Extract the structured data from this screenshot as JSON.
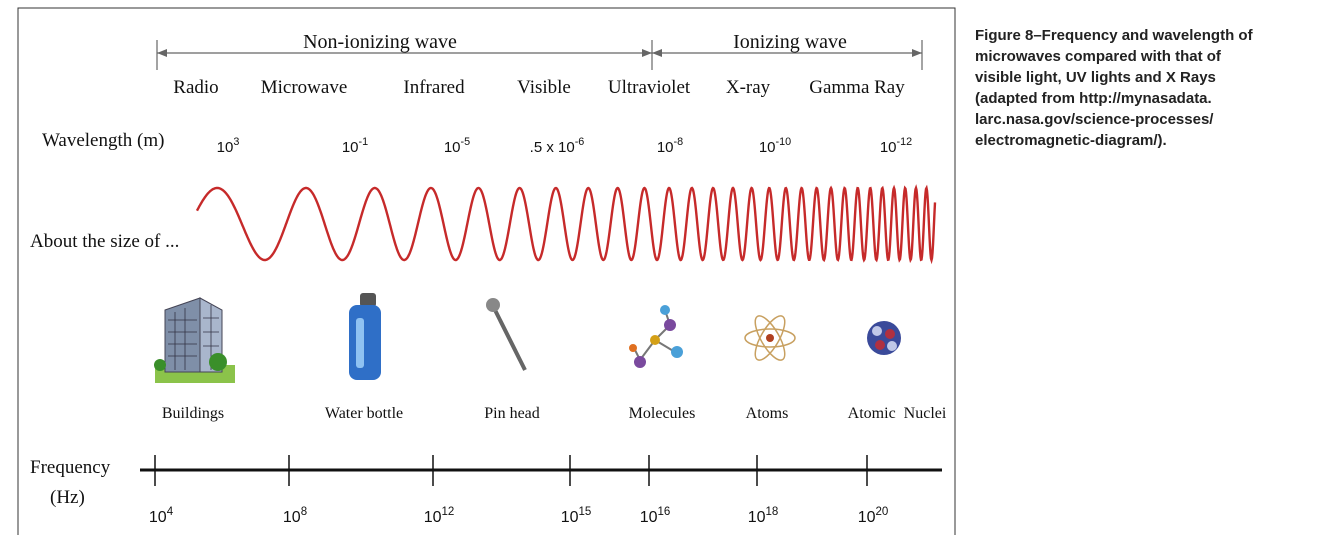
{
  "header": {
    "non_ionizing": "Non-ionizing wave",
    "ionizing": "Ionizing wave"
  },
  "bands": [
    "Radio",
    "Microwave",
    "Infrared",
    "Visible",
    "Ultraviolet",
    "X-ray",
    "Gamma Ray"
  ],
  "wavelength": {
    "label": "Wavelength (m)",
    "values": [
      {
        "base": "10",
        "exponent": "3"
      },
      {
        "base": "10",
        "exponent": "-1"
      },
      {
        "base": "10",
        "exponent": "-5"
      },
      {
        "base": ".5 x 10",
        "exponent": "-6"
      },
      {
        "base": "10",
        "exponent": "-8"
      },
      {
        "base": "10",
        "exponent": "-10"
      },
      {
        "base": "10",
        "exponent": "-12"
      }
    ]
  },
  "size": {
    "label": "About the size of ...",
    "objects": [
      "Buildings",
      "Water bottle",
      "Pin head",
      "Molecules",
      "Atoms",
      "Atomic  Nuclei"
    ]
  },
  "frequency": {
    "label_lines": [
      "Frequency",
      "(Hz)"
    ],
    "values": [
      {
        "base": "10",
        "exponent": "4"
      },
      {
        "base": "10",
        "exponent": "8"
      },
      {
        "base": "10",
        "exponent": "12"
      },
      {
        "base": "10",
        "exponent": "15"
      },
      {
        "base": "10",
        "exponent": "16"
      },
      {
        "base": "10",
        "exponent": "18"
      },
      {
        "base": "10",
        "exponent": "20"
      }
    ]
  },
  "caption": [
    "Figure 8–Frequency and wavelength of",
    "microwaves compared with that of",
    "visible light, UV lights and X Rays",
    "(adapted from http://mynasadata.",
    "larc.nasa.gov/science-processes/",
    "electromagnetic-diagram/)."
  ]
}
